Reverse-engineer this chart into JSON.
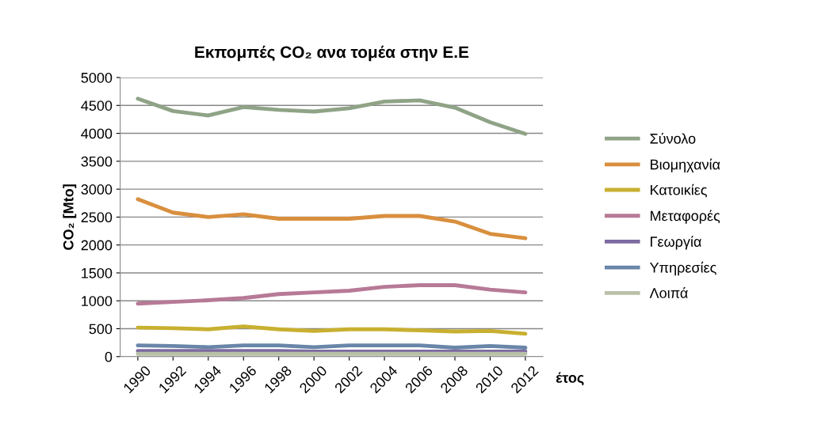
{
  "chart_data": {
    "type": "line",
    "title": "Εκπομπές CO₂ ανα τομέα στην Ε.Ε",
    "ylabel": "CO₂ [Mto]",
    "xlabel": "έτος",
    "categories": [
      "1990",
      "1992",
      "1994",
      "1996",
      "1998",
      "2000",
      "2002",
      "2004",
      "2006",
      "2008",
      "2010",
      "2012"
    ],
    "series": [
      {
        "name": "Σύνολο",
        "color": "#8fa386",
        "values": [
          4620,
          4400,
          4320,
          4470,
          4420,
          4390,
          4450,
          4570,
          4590,
          4460,
          4200,
          3990
        ]
      },
      {
        "name": "Βιομηχανία",
        "color": "#d98f3e",
        "values": [
          2820,
          2580,
          2500,
          2550,
          2470,
          2470,
          2470,
          2520,
          2520,
          2420,
          2200,
          2120
        ]
      },
      {
        "name": "Κατοικίες",
        "color": "#c8b030",
        "values": [
          520,
          510,
          490,
          540,
          490,
          460,
          490,
          490,
          470,
          450,
          460,
          410
        ]
      },
      {
        "name": "Μεταφορές",
        "color": "#b77a96",
        "values": [
          950,
          980,
          1010,
          1050,
          1120,
          1150,
          1180,
          1250,
          1280,
          1280,
          1200,
          1150
        ]
      },
      {
        "name": "Γεωργία",
        "color": "#7d6aa0",
        "values": [
          100,
          100,
          100,
          100,
          100,
          90,
          90,
          90,
          90,
          90,
          90,
          90
        ]
      },
      {
        "name": "Υπηρεσίες",
        "color": "#6986a8",
        "values": [
          200,
          190,
          170,
          200,
          200,
          170,
          200,
          200,
          200,
          160,
          190,
          160
        ]
      },
      {
        "name": "Λοιπά",
        "color": "#b8c0a8",
        "values": [
          50,
          50,
          50,
          50,
          50,
          50,
          50,
          50,
          50,
          50,
          50,
          50
        ]
      }
    ],
    "ylim": [
      0,
      5000
    ],
    "yticks": [
      0,
      500,
      1000,
      1500,
      2000,
      2500,
      3000,
      3500,
      4000,
      4500,
      5000
    ],
    "grid": "y",
    "legend": "right",
    "marker": "none",
    "line_style": "solid"
  }
}
